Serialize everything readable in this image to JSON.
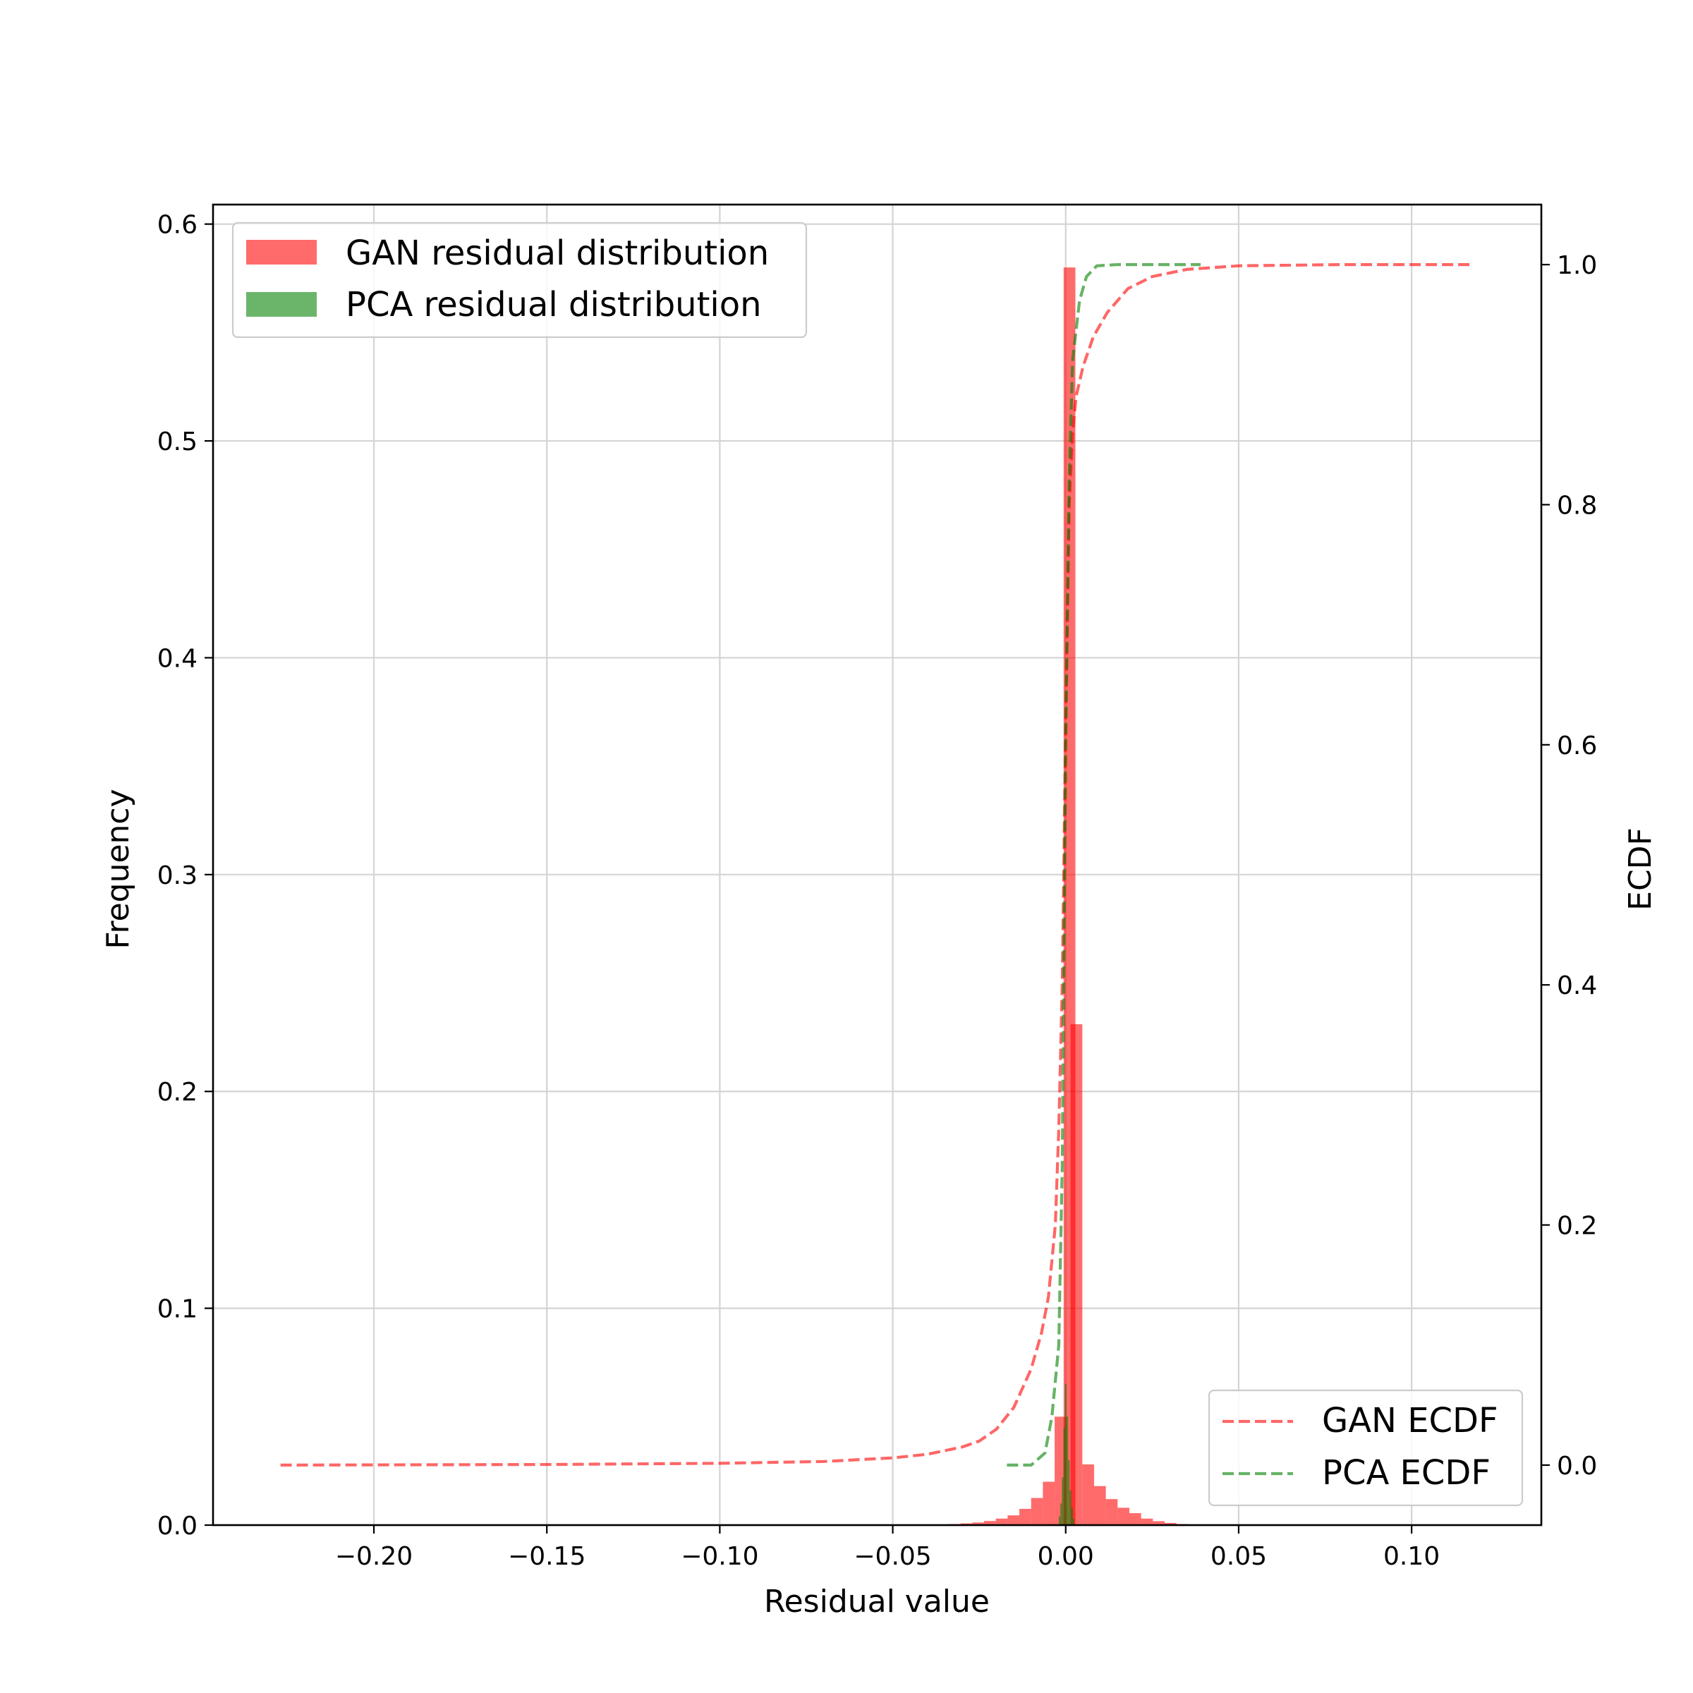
{
  "chart_data": {
    "type": "bar",
    "xlabel": "Residual value",
    "ylabel": "Frequency",
    "y2label": "ECDF",
    "xlim": [
      -0.2465,
      0.1375
    ],
    "ylim": [
      0,
      0.609
    ],
    "y2lim": [
      -0.05,
      1.05
    ],
    "grid": true,
    "x_ticks": [
      {
        "v": -0.2,
        "label": "−0.20"
      },
      {
        "v": -0.15,
        "label": "−0.15"
      },
      {
        "v": -0.1,
        "label": "−0.10"
      },
      {
        "v": -0.05,
        "label": "−0.05"
      },
      {
        "v": 0.0,
        "label": "0.00"
      },
      {
        "v": 0.05,
        "label": "0.05"
      },
      {
        "v": 0.1,
        "label": "0.10"
      }
    ],
    "y_ticks": [
      {
        "v": 0.0,
        "label": "0.0"
      },
      {
        "v": 0.1,
        "label": "0.1"
      },
      {
        "v": 0.2,
        "label": "0.2"
      },
      {
        "v": 0.3,
        "label": "0.3"
      },
      {
        "v": 0.4,
        "label": "0.4"
      },
      {
        "v": 0.5,
        "label": "0.5"
      },
      {
        "v": 0.6,
        "label": "0.6"
      }
    ],
    "y2_ticks": [
      {
        "v": 0.0,
        "label": "0.0"
      },
      {
        "v": 0.2,
        "label": "0.2"
      },
      {
        "v": 0.4,
        "label": "0.4"
      },
      {
        "v": 0.6,
        "label": "0.6"
      },
      {
        "v": 0.8,
        "label": "0.8"
      },
      {
        "v": 1.0,
        "label": "1.0"
      }
    ],
    "histograms": [
      {
        "name": "GAN residual distribution",
        "color": "#ff0000",
        "opacity": 0.58,
        "bin_width": 0.0034,
        "bins": [
          {
            "x0": -0.0406,
            "h": 0.0002
          },
          {
            "x0": -0.0372,
            "h": 0.0003
          },
          {
            "x0": -0.0338,
            "h": 0.0005
          },
          {
            "x0": -0.0304,
            "h": 0.0008
          },
          {
            "x0": -0.027,
            "h": 0.0012
          },
          {
            "x0": -0.0236,
            "h": 0.0019
          },
          {
            "x0": -0.0202,
            "h": 0.003
          },
          {
            "x0": -0.0168,
            "h": 0.0045
          },
          {
            "x0": -0.0134,
            "h": 0.0075
          },
          {
            "x0": -0.01,
            "h": 0.0125
          },
          {
            "x0": -0.0066,
            "h": 0.02
          },
          {
            "x0": -0.0032,
            "h": 0.05
          },
          {
            "x0": -0.0006,
            "h": 0.58
          },
          {
            "x0": 0.0014,
            "h": 0.231
          },
          {
            "x0": 0.0048,
            "h": 0.028
          },
          {
            "x0": 0.0082,
            "h": 0.018
          },
          {
            "x0": 0.0116,
            "h": 0.012
          },
          {
            "x0": 0.015,
            "h": 0.008
          },
          {
            "x0": 0.0184,
            "h": 0.0055
          },
          {
            "x0": 0.0218,
            "h": 0.003
          },
          {
            "x0": 0.0252,
            "h": 0.0018
          },
          {
            "x0": 0.0286,
            "h": 0.001
          },
          {
            "x0": 0.032,
            "h": 0.0005
          },
          {
            "x0": 0.0354,
            "h": 0.0002
          }
        ]
      },
      {
        "name": "PCA residual distribution",
        "color": "#008000",
        "opacity": 0.58,
        "bin_width": 0.00045,
        "bins": [
          {
            "x0": -0.002,
            "h": 0.004
          },
          {
            "x0": -0.00155,
            "h": 0.01
          },
          {
            "x0": -0.0011,
            "h": 0.022
          },
          {
            "x0": -0.00065,
            "h": 0.045
          },
          {
            "x0": -0.0002,
            "h": 0.065
          },
          {
            "x0": 0.00025,
            "h": 0.05
          },
          {
            "x0": 0.0007,
            "h": 0.03
          },
          {
            "x0": 0.00115,
            "h": 0.016
          },
          {
            "x0": 0.0016,
            "h": 0.008
          },
          {
            "x0": 0.00205,
            "h": 0.003
          }
        ]
      }
    ],
    "ecdf_series": [
      {
        "name": "GAN ECDF",
        "color": "#ff0000",
        "points": [
          [
            -0.227,
            0.0
          ],
          [
            -0.15,
            0.0005
          ],
          [
            -0.1,
            0.0015
          ],
          [
            -0.07,
            0.003
          ],
          [
            -0.05,
            0.006
          ],
          [
            -0.04,
            0.009
          ],
          [
            -0.03,
            0.015
          ],
          [
            -0.025,
            0.02
          ],
          [
            -0.02,
            0.03
          ],
          [
            -0.015,
            0.048
          ],
          [
            -0.01,
            0.08
          ],
          [
            -0.007,
            0.11
          ],
          [
            -0.005,
            0.14
          ],
          [
            -0.003,
            0.2
          ],
          [
            -0.002,
            0.28
          ],
          [
            -0.001,
            0.4
          ],
          [
            0.0,
            0.62
          ],
          [
            0.001,
            0.8
          ],
          [
            0.002,
            0.86
          ],
          [
            0.003,
            0.89
          ],
          [
            0.005,
            0.915
          ],
          [
            0.008,
            0.94
          ],
          [
            0.012,
            0.96
          ],
          [
            0.018,
            0.98
          ],
          [
            0.025,
            0.99
          ],
          [
            0.035,
            0.996
          ],
          [
            0.05,
            0.999
          ],
          [
            0.08,
            1.0
          ],
          [
            0.118,
            1.0
          ]
        ]
      },
      {
        "name": "PCA ECDF",
        "color": "#008000",
        "points": [
          [
            -0.017,
            0.0
          ],
          [
            -0.01,
            0.0
          ],
          [
            -0.006,
            0.01
          ],
          [
            -0.004,
            0.04
          ],
          [
            -0.002,
            0.1
          ],
          [
            -0.001,
            0.25
          ],
          [
            0.0,
            0.6
          ],
          [
            0.001,
            0.82
          ],
          [
            0.002,
            0.92
          ],
          [
            0.004,
            0.97
          ],
          [
            0.006,
            0.99
          ],
          [
            0.009,
            0.999
          ],
          [
            0.015,
            1.0
          ],
          [
            0.039,
            1.0
          ]
        ]
      }
    ],
    "legend_bars": {
      "placement": "upper-left",
      "entries": [
        "GAN residual distribution",
        "PCA residual distribution"
      ]
    },
    "legend_lines": {
      "placement": "lower-right",
      "entries": [
        "GAN ECDF",
        "PCA ECDF"
      ]
    }
  }
}
